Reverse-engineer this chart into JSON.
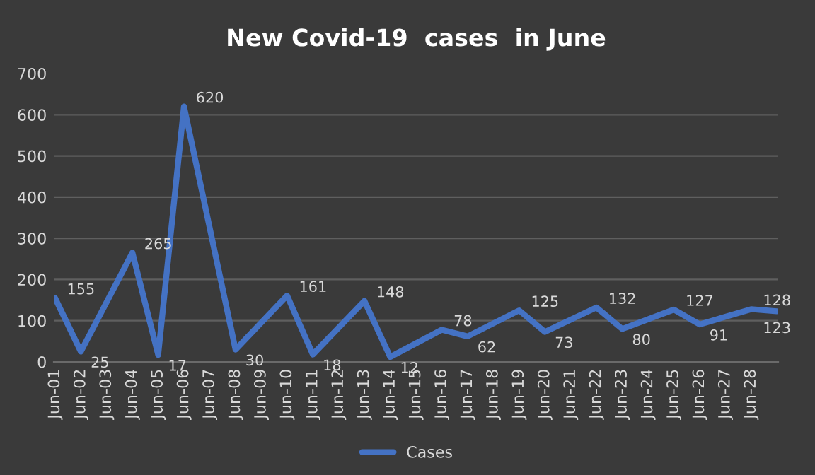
{
  "chart_data": {
    "type": "line",
    "title": "New Covid-19  cases  in June",
    "categories": [
      "Jun-01",
      "Jun-02",
      "Jun-03",
      "Jun-04",
      "Jun-05",
      "Jun-06",
      "Jun-07",
      "Jun-08",
      "Jun-09",
      "Jun-10",
      "Jun-11",
      "Jun-12",
      "Jun-13",
      "Jun-14",
      "Jun-15",
      "Jun-16",
      "Jun-17",
      "Jun-18",
      "Jun-19",
      "Jun-20",
      "Jun-21",
      "Jun-22",
      "Jun-23",
      "Jun-24",
      "Jun-25",
      "Jun-26",
      "Jun-27",
      "Jun-28",
      null
    ],
    "series": [
      {
        "name": "Cases",
        "color": "#4472c4",
        "values": [
          155,
          25,
          null,
          265,
          17,
          620,
          null,
          30,
          null,
          161,
          18,
          null,
          148,
          12,
          null,
          78,
          62,
          null,
          125,
          73,
          null,
          132,
          80,
          null,
          127,
          91,
          null,
          128,
          123
        ]
      }
    ],
    "ylim": [
      0,
      700
    ],
    "yticks": [
      0,
      100,
      200,
      300,
      400,
      500,
      600,
      700
    ],
    "grid": "y",
    "legend": "bottom",
    "data_labels": true,
    "marker": "none",
    "line_style": "solid"
  }
}
